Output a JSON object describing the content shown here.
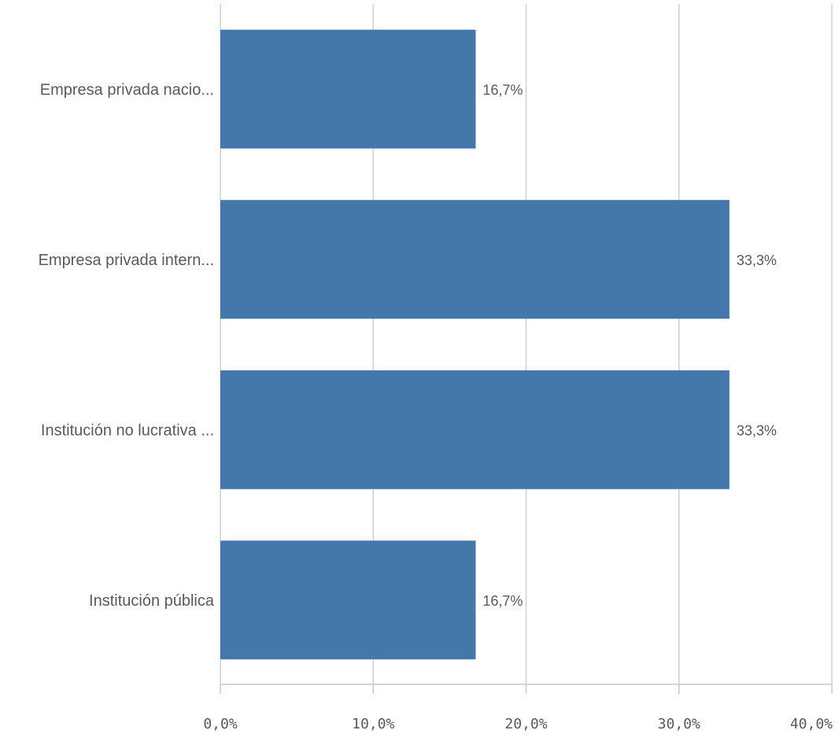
{
  "chart_data": {
    "type": "bar",
    "orientation": "horizontal",
    "categories": [
      "Empresa  privada nacio...",
      "Empresa privada intern...",
      "Institución no lucrativa ...",
      "Institución pública"
    ],
    "values": [
      16.7,
      33.3,
      33.3,
      16.7
    ],
    "value_labels": [
      "16,7%",
      "33,3%",
      "33,3%",
      "16,7%"
    ],
    "x_ticks": [
      0,
      10,
      20,
      30,
      40
    ],
    "x_tick_labels": [
      "0,0%",
      "10,0%",
      "20,0%",
      "30,0%",
      "40,0%"
    ],
    "xlim": [
      0,
      40
    ],
    "grid": true,
    "bar_color": "#4477aa",
    "grid_color": "#d0d0d0",
    "text_color": "#595959"
  }
}
